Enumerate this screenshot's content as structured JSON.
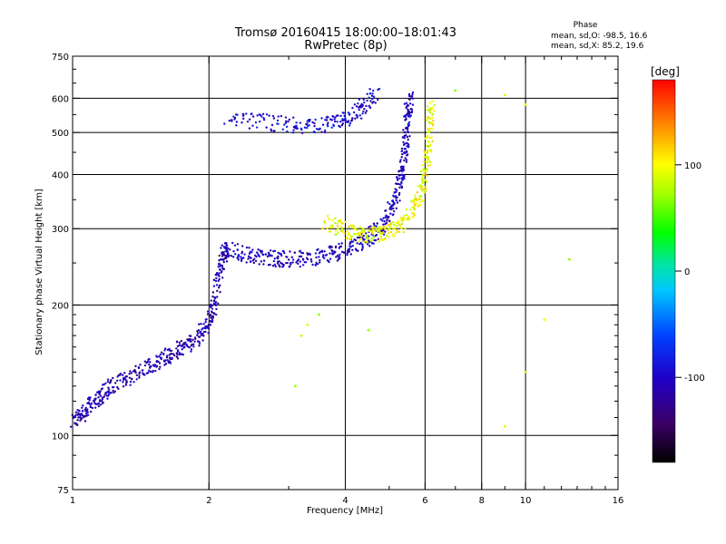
{
  "chart_data": {
    "type": "scatter",
    "title": "Tromsø 20160415 18:00:00–18:01:43",
    "subtitle": "RwPretec (8p)",
    "xlabel": "Frequency [MHz]",
    "ylabel": "Stationary phase Virtual Height [km]",
    "x_scale": "log",
    "y_scale": "log",
    "xlim": [
      1,
      16
    ],
    "ylim": [
      75,
      750
    ],
    "x_ticks": [
      1,
      2,
      4,
      6,
      8,
      10,
      16
    ],
    "y_ticks": [
      75,
      100,
      200,
      300,
      400,
      500,
      600,
      750
    ],
    "grid": true,
    "legend": {
      "heading": "Phase",
      "line1": "mean, sd,O: -98.5, 16.6",
      "line2": "mean, sd,X:  85.2, 19.6"
    },
    "colorbar": {
      "label": "[deg]",
      "range": [
        -180,
        180
      ],
      "ticks": [
        100,
        0,
        -100
      ],
      "colormap": "rainbow (black → purple → blue → cyan → green → yellow → orange → red)"
    },
    "series": [
      {
        "trace": "F-region O-mode trace (low frequency)",
        "phase_deg": -110,
        "points": [
          [
            1.0,
            108
          ],
          [
            1.05,
            112
          ],
          [
            1.1,
            118
          ],
          [
            1.15,
            122
          ],
          [
            1.2,
            128
          ],
          [
            1.3,
            135
          ],
          [
            1.4,
            140
          ],
          [
            1.5,
            146
          ],
          [
            1.6,
            150
          ],
          [
            1.7,
            156
          ],
          [
            1.8,
            162
          ],
          [
            1.9,
            170
          ],
          [
            2.0,
            182
          ],
          [
            2.05,
            200
          ],
          [
            2.1,
            230
          ],
          [
            2.15,
            260
          ],
          [
            2.2,
            270
          ]
        ]
      },
      {
        "trace": "F-region O-mode trace (main cusp)",
        "phase_deg": -105,
        "points": [
          [
            2.2,
            268
          ],
          [
            2.4,
            262
          ],
          [
            2.6,
            258
          ],
          [
            2.8,
            255
          ],
          [
            3.0,
            255
          ],
          [
            3.3,
            256
          ],
          [
            3.6,
            260
          ],
          [
            3.9,
            266
          ],
          [
            4.2,
            274
          ],
          [
            4.5,
            285
          ],
          [
            4.8,
            302
          ],
          [
            5.0,
            325
          ],
          [
            5.2,
            360
          ],
          [
            5.3,
            400
          ],
          [
            5.4,
            450
          ],
          [
            5.45,
            500
          ],
          [
            5.5,
            560
          ],
          [
            5.55,
            610
          ]
        ]
      },
      {
        "trace": "F-region X-mode trace",
        "phase_deg": 95,
        "points": [
          [
            3.6,
            310
          ],
          [
            3.9,
            300
          ],
          [
            4.2,
            292
          ],
          [
            4.5,
            290
          ],
          [
            4.8,
            292
          ],
          [
            5.1,
            298
          ],
          [
            5.4,
            312
          ],
          [
            5.7,
            335
          ],
          [
            5.9,
            370
          ],
          [
            6.0,
            410
          ],
          [
            6.1,
            460
          ],
          [
            6.15,
            520
          ],
          [
            6.2,
            580
          ]
        ]
      },
      {
        "trace": "Upper trace (~520 km)",
        "phase_deg": -95,
        "points": [
          [
            2.2,
            540
          ],
          [
            2.6,
            530
          ],
          [
            3.0,
            520
          ],
          [
            3.4,
            515
          ],
          [
            3.8,
            525
          ],
          [
            4.1,
            545
          ],
          [
            4.4,
            575
          ],
          [
            4.7,
            615
          ]
        ]
      },
      {
        "trace": "Scattered echoes",
        "phase_deg": 85,
        "points": [
          [
            3.1,
            130
          ],
          [
            3.2,
            170
          ],
          [
            3.3,
            180
          ],
          [
            3.5,
            190
          ],
          [
            4.5,
            175
          ],
          [
            7.0,
            625
          ],
          [
            9.0,
            610
          ],
          [
            10.0,
            580
          ],
          [
            10.0,
            140
          ],
          [
            12.5,
            255
          ],
          [
            11.0,
            185
          ],
          [
            9.0,
            105
          ]
        ]
      }
    ]
  }
}
